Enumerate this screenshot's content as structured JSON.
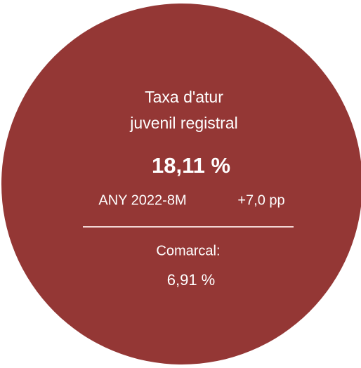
{
  "card": {
    "title_lines": [
      "Taxa d'atur",
      "juvenil registral"
    ],
    "value": "18,11 %",
    "period": "ANY 2022-8M",
    "change": "+7,0 pp",
    "comparison_label": "Comarcal:",
    "comparison_value": "6,91 %"
  }
}
